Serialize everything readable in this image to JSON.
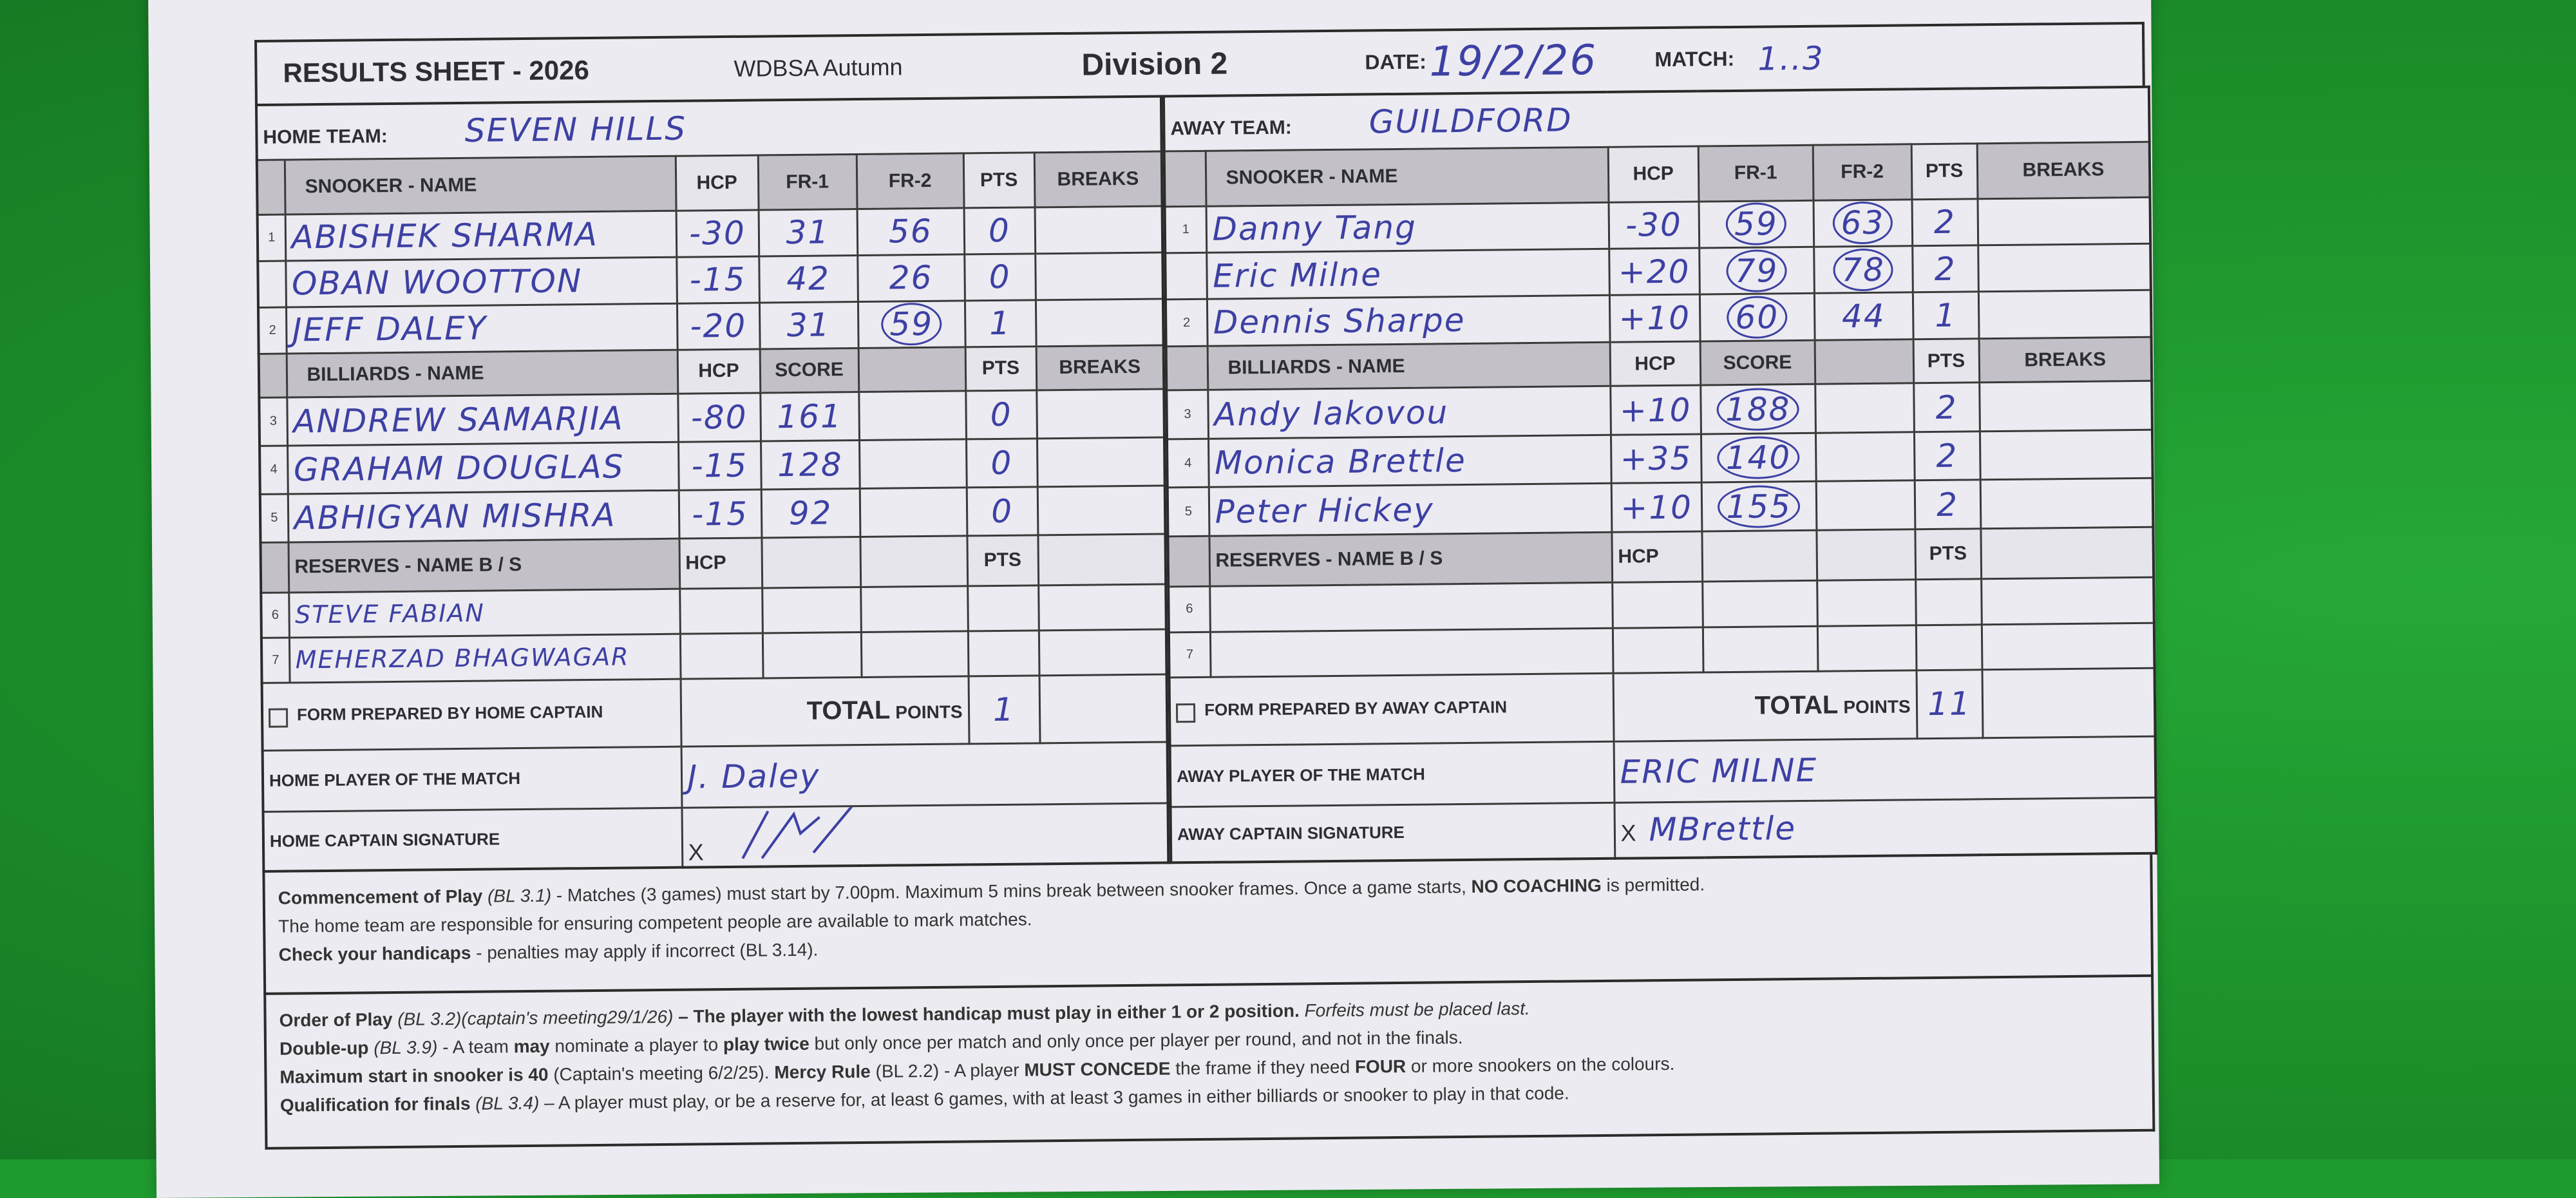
{
  "header": {
    "title": "RESULTS SHEET - 2026",
    "league": "WDBSA Autumn",
    "division": "Division 2",
    "date_label": "DATE:",
    "date": "19/2/26",
    "match_label": "MATCH:",
    "match": "1..3"
  },
  "home": {
    "team_label": "HOME TEAM:",
    "team": "SEVEN HILLS",
    "snooker_header": [
      "SNOOKER  -  NAME",
      "HCP",
      "FR-1",
      "FR-2",
      "PTS",
      "BREAKS"
    ],
    "snooker": [
      {
        "num": "1",
        "name": "ABISHEK SHARMA",
        "hcp": "-30",
        "c1": "31",
        "c2": "56",
        "pts": "0",
        "c1_circled": false,
        "c2_circled": false
      },
      {
        "num": "",
        "name": "OBAN WOOTTON",
        "hcp": "-15",
        "c1": "42",
        "c2": "26",
        "pts": "0",
        "c1_circled": false,
        "c2_circled": false
      },
      {
        "num": "2",
        "name": "JEFF DALEY",
        "hcp": "-20",
        "c1": "31",
        "c2": "59",
        "pts": "1",
        "c1_circled": false,
        "c2_circled": true
      }
    ],
    "billiards_header": [
      "BILLIARDS  -  NAME",
      "HCP",
      "SCORE",
      "",
      "PTS",
      "BREAKS"
    ],
    "billiards": [
      {
        "num": "3",
        "name": "ANDREW SAMARJIA",
        "hcp": "-80",
        "c1": "161",
        "c2": "",
        "pts": "0",
        "c1_circled": false
      },
      {
        "num": "4",
        "name": "GRAHAM DOUGLAS",
        "hcp": "-15",
        "c1": "128",
        "c2": "",
        "pts": "0",
        "c1_circled": false
      },
      {
        "num": "5",
        "name": "ABHIGYAN MISHRA",
        "hcp": "-15",
        "c1": "92",
        "c2": "",
        "pts": "0",
        "c1_circled": false
      }
    ],
    "reserves_header": [
      "RESERVES  -  NAME B / S",
      "HCP",
      "PTS"
    ],
    "reserves": [
      {
        "num": "6",
        "name": "STEVE FABIAN"
      },
      {
        "num": "7",
        "name": "MEHERZAD BHAGWAGAR"
      }
    ],
    "form_prepared": "FORM PREPARED BY HOME CAPTAIN",
    "total_label": "TOTAL",
    "points_label": "POINTS",
    "total": "1",
    "potm_label": "HOME PLAYER OF THE MATCH",
    "potm": "J. Daley",
    "sig_label": "HOME CAPTAIN SIGNATURE",
    "sig_x": "X"
  },
  "away": {
    "team_label": "AWAY TEAM:",
    "team": "GUILDFORD",
    "snooker_header": [
      "SNOOKER  -  NAME",
      "HCP",
      "FR-1",
      "FR-2",
      "PTS",
      "BREAKS"
    ],
    "snooker": [
      {
        "num": "1",
        "name": "Danny Tang",
        "hcp": "-30",
        "c1": "59",
        "c2": "63",
        "pts": "2",
        "c1_circled": true,
        "c2_circled": true
      },
      {
        "num": "",
        "name": "Eric Milne",
        "hcp": "+20",
        "c1": "79",
        "c2": "78",
        "pts": "2",
        "c1_circled": true,
        "c2_circled": true
      },
      {
        "num": "2",
        "name": "Dennis Sharpe",
        "hcp": "+10",
        "c1": "60",
        "c2": "44",
        "pts": "1",
        "c1_circled": true,
        "c2_circled": false
      }
    ],
    "billiards_header": [
      "BILLIARDS  -  NAME",
      "HCP",
      "SCORE",
      "",
      "PTS",
      "BREAKS"
    ],
    "billiards": [
      {
        "num": "3",
        "name": "Andy Iakovou",
        "hcp": "+10",
        "c1": "188",
        "c2": "",
        "pts": "2",
        "c1_circled": true
      },
      {
        "num": "4",
        "name": "Monica Brettle",
        "hcp": "+35",
        "c1": "140",
        "c2": "",
        "pts": "2",
        "c1_circled": true
      },
      {
        "num": "5",
        "name": "Peter Hickey",
        "hcp": "+10",
        "c1": "155",
        "c2": "",
        "pts": "2",
        "c1_circled": true
      }
    ],
    "reserves_header": [
      "RESERVES  -  NAME B / S",
      "HCP",
      "PTS"
    ],
    "reserves": [
      {
        "num": "6",
        "name": ""
      },
      {
        "num": "7",
        "name": ""
      }
    ],
    "form_prepared": "FORM PREPARED BY AWAY CAPTAIN",
    "total_label": "TOTAL",
    "points_label": "POINTS",
    "total": "11",
    "potm_label": "AWAY PLAYER OF THE MATCH",
    "potm": "ERIC MILNE",
    "sig_label": "AWAY CAPTAIN SIGNATURE",
    "sig_x": "X",
    "signature": "MBrettle"
  },
  "rules": [
    [
      [
        {
          "s": "b",
          "t": "Commencement of Play"
        },
        {
          "s": "i",
          "t": " (BL 3.1)"
        },
        {
          "s": "n",
          "t": " - Matches (3 games) must start by 7.00pm. Maximum 5 mins break between snooker frames. Once a game starts, "
        },
        {
          "s": "b",
          "t": "NO COACHING"
        },
        {
          "s": "n",
          "t": " is permitted."
        }
      ],
      [
        {
          "s": "n",
          "t": "The home team are responsible for ensuring competent people are available to mark matches."
        }
      ],
      [
        {
          "s": "b",
          "t": "Check your handicaps"
        },
        {
          "s": "n",
          "t": " - penalties may apply if incorrect (BL 3.14)."
        }
      ]
    ],
    [
      [
        {
          "s": "b",
          "t": "Order of Play"
        },
        {
          "s": "i",
          "t": " (BL 3.2)(captain's meeting29/1/26)"
        },
        {
          "s": "b",
          "t": " – The player with the lowest handicap must play in either 1 or 2 position."
        },
        {
          "s": "i",
          "t": " Forfeits must be placed last."
        }
      ],
      [
        {
          "s": "b",
          "t": "Double-up"
        },
        {
          "s": "i",
          "t": " (BL 3.9)"
        },
        {
          "s": "n",
          "t": " - A team "
        },
        {
          "s": "b",
          "t": "may"
        },
        {
          "s": "n",
          "t": " nominate a player to "
        },
        {
          "s": "b",
          "t": "play twice"
        },
        {
          "s": "n",
          "t": " but only once per match and only once per player per round, and not in the finals."
        }
      ],
      [
        {
          "s": "b",
          "t": "Maximum start in snooker is 40"
        },
        {
          "s": "n",
          "t": " (Captain's meeting 6/2/25).  "
        },
        {
          "s": "b",
          "t": "Mercy Rule"
        },
        {
          "s": "n",
          "t": " (BL 2.2) - A player "
        },
        {
          "s": "b",
          "t": "MUST CONCEDE"
        },
        {
          "s": "n",
          "t": " the frame if they need "
        },
        {
          "s": "b",
          "t": "FOUR"
        },
        {
          "s": "n",
          "t": " or more snookers on the colours."
        }
      ],
      [
        {
          "s": "b",
          "t": "Qualification for finals"
        },
        {
          "s": "i",
          "t": " (BL 3.4)"
        },
        {
          "s": "n",
          "t": " – A player must play, or be a reserve for, at least 6 games, with at least 3 games in either billiards or snooker to play in that code."
        }
      ]
    ]
  ],
  "colors": {
    "background": "#1f9a2e",
    "paper": "#ecebf1",
    "ink": "#3d40a3",
    "header_gray": "#cfccd4"
  }
}
